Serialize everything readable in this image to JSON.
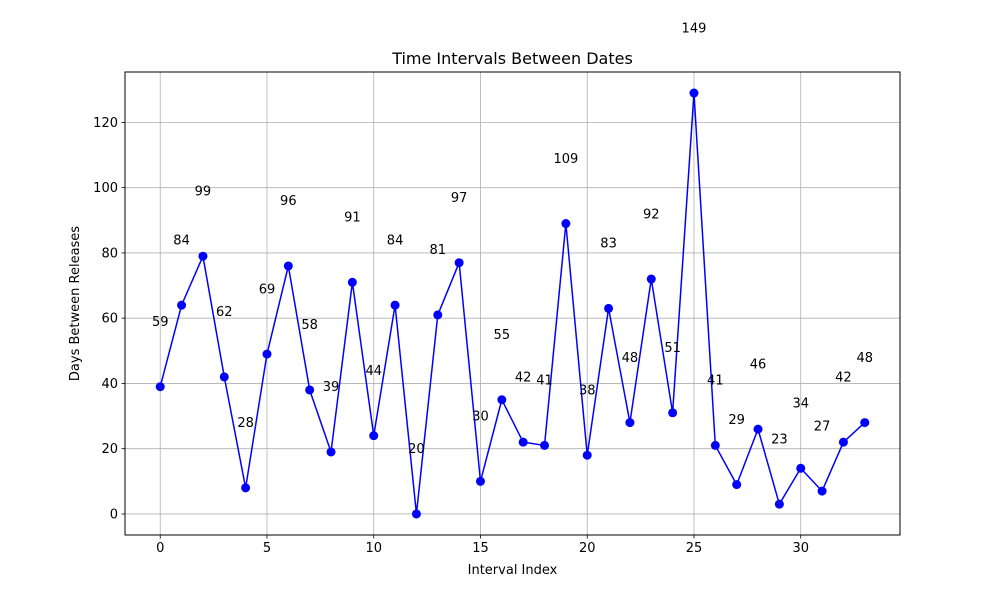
{
  "chart_data": {
    "type": "line",
    "title": "Time Intervals Between Dates",
    "xlabel": "Interval Index",
    "ylabel": "Days Between Releases",
    "xlim": [
      -1.65,
      34.65
    ],
    "ylim": [
      -6.45,
      135.45
    ],
    "xticks": [
      0,
      5,
      10,
      15,
      20,
      25,
      30
    ],
    "yticks": [
      0,
      20,
      40,
      60,
      80,
      100,
      120
    ],
    "grid": true,
    "series": [
      {
        "color": "#0000ff",
        "marker": "circle",
        "x": [
          0,
          1,
          2,
          3,
          4,
          5,
          6,
          7,
          8,
          9,
          10,
          11,
          12,
          13,
          14,
          15,
          16,
          17,
          18,
          19,
          20,
          21,
          22,
          23,
          24,
          25,
          26,
          27,
          28,
          29,
          30,
          31,
          32,
          33
        ],
        "values": [
          39,
          64,
          79,
          42,
          8,
          49,
          76,
          38,
          19,
          71,
          24,
          64,
          0,
          61,
          77,
          10,
          35,
          22,
          21,
          89,
          18,
          63,
          28,
          72,
          31,
          129,
          21,
          9,
          26,
          3,
          14,
          7,
          22,
          28
        ]
      }
    ],
    "annotations": [
      {
        "text": "59",
        "x": 0,
        "y": 59
      },
      {
        "text": "84",
        "x": 1,
        "y": 84
      },
      {
        "text": "99",
        "x": 2,
        "y": 99
      },
      {
        "text": "62",
        "x": 3,
        "y": 62
      },
      {
        "text": "28",
        "x": 4,
        "y": 28
      },
      {
        "text": "69",
        "x": 5,
        "y": 69
      },
      {
        "text": "96",
        "x": 6,
        "y": 96
      },
      {
        "text": "58",
        "x": 7,
        "y": 58
      },
      {
        "text": "39",
        "x": 8,
        "y": 39
      },
      {
        "text": "91",
        "x": 9,
        "y": 91
      },
      {
        "text": "44",
        "x": 10,
        "y": 44
      },
      {
        "text": "84",
        "x": 11,
        "y": 84
      },
      {
        "text": "20",
        "x": 12,
        "y": 20
      },
      {
        "text": "81",
        "x": 13,
        "y": 81
      },
      {
        "text": "97",
        "x": 14,
        "y": 97
      },
      {
        "text": "30",
        "x": 15,
        "y": 30
      },
      {
        "text": "55",
        "x": 16,
        "y": 55
      },
      {
        "text": "42",
        "x": 17,
        "y": 42
      },
      {
        "text": "41",
        "x": 18,
        "y": 41
      },
      {
        "text": "109",
        "x": 19,
        "y": 109
      },
      {
        "text": "38",
        "x": 20,
        "y": 38
      },
      {
        "text": "83",
        "x": 21,
        "y": 83
      },
      {
        "text": "48",
        "x": 22,
        "y": 48
      },
      {
        "text": "92",
        "x": 23,
        "y": 92
      },
      {
        "text": "51",
        "x": 24,
        "y": 51
      },
      {
        "text": "149",
        "x": 25,
        "y": 149
      },
      {
        "text": "41",
        "x": 26,
        "y": 41
      },
      {
        "text": "29",
        "x": 27,
        "y": 29
      },
      {
        "text": "46",
        "x": 28,
        "y": 46
      },
      {
        "text": "23",
        "x": 29,
        "y": 23
      },
      {
        "text": "34",
        "x": 30,
        "y": 34
      },
      {
        "text": "27",
        "x": 31,
        "y": 27
      },
      {
        "text": "42",
        "x": 32,
        "y": 42
      },
      {
        "text": "48",
        "x": 33,
        "y": 48
      }
    ]
  }
}
